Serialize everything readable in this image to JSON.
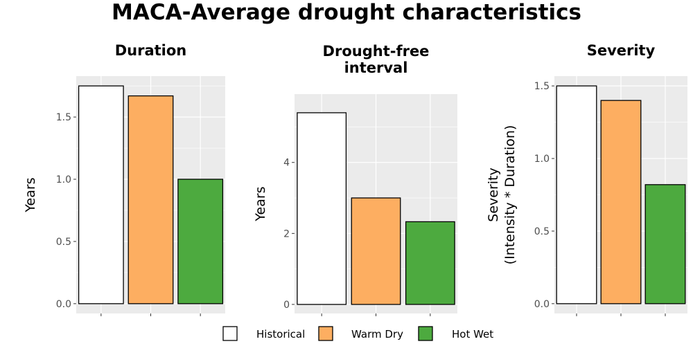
{
  "title": "MACA-Average drought characteristics",
  "legend": {
    "position": "bottom",
    "items": [
      {
        "label": "Historical",
        "color": "#ffffff"
      },
      {
        "label": "Warm Dry",
        "color": "#fdae61"
      },
      {
        "label": "Hot Wet",
        "color": "#4daa3f"
      }
    ]
  },
  "colors": {
    "panel_bg": "#ebebeb",
    "grid": "#ffffff",
    "bar_outline": "#000000",
    "tick_text": "#4d4d4d"
  },
  "chart_data": [
    {
      "type": "bar",
      "title": "Duration",
      "ylabel": "Years",
      "categories": [
        "Historical",
        "Warm Dry",
        "Hot Wet"
      ],
      "values": [
        1.75,
        1.67,
        1.0
      ],
      "ylim": [
        0,
        1.75
      ],
      "yticks": [
        0.0,
        0.5,
        1.0,
        1.5
      ],
      "ytick_labels": [
        "0.0",
        "0.5",
        "1.0",
        "1.5"
      ],
      "grid": true
    },
    {
      "type": "bar",
      "title": "Drought-free interval",
      "title_lines": [
        "Drought-free",
        "interval"
      ],
      "ylabel": "Years",
      "categories": [
        "Historical",
        "Warm Dry",
        "Hot Wet"
      ],
      "values": [
        5.4,
        3.0,
        2.33
      ],
      "ylim": [
        0,
        5.67
      ],
      "yticks": [
        0,
        2,
        4
      ],
      "ytick_labels": [
        "0",
        "2",
        "4"
      ],
      "grid": true
    },
    {
      "type": "bar",
      "title": "Severity",
      "ylabel": "Severity (Intensity * Duration)",
      "ylabel_lines": [
        "Severity",
        "(Intensity * Duration)"
      ],
      "categories": [
        "Historical",
        "Warm Dry",
        "Hot Wet"
      ],
      "values": [
        1.5,
        1.4,
        0.82
      ],
      "ylim": [
        0,
        1.5
      ],
      "yticks": [
        0.0,
        0.5,
        1.0,
        1.5
      ],
      "ytick_labels": [
        "0.0",
        "0.5",
        "1.0",
        "1.5"
      ],
      "grid": true
    }
  ]
}
